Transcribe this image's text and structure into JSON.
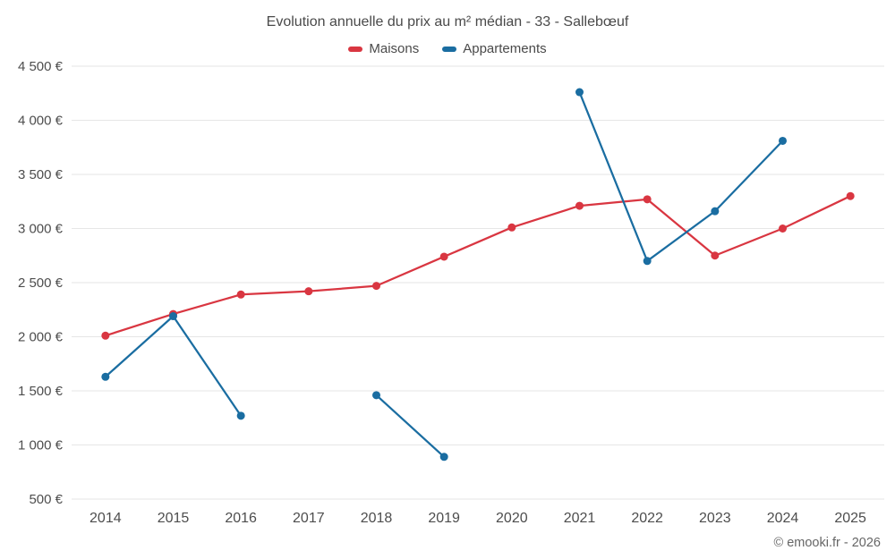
{
  "chart_data": {
    "type": "line",
    "title": "Evolution annuelle du prix au m² médian - 33 - Sallebœuf",
    "categories": [
      "2014",
      "2015",
      "2016",
      "2017",
      "2018",
      "2019",
      "2020",
      "2021",
      "2022",
      "2023",
      "2024",
      "2025"
    ],
    "series": [
      {
        "name": "Maisons",
        "color": "#d93641",
        "values": [
          2010,
          2210,
          2390,
          2420,
          2470,
          2740,
          3010,
          3210,
          3270,
          2750,
          3000,
          3300
        ]
      },
      {
        "name": "Appartements",
        "color": "#1a6da1",
        "values": [
          1630,
          2190,
          1270,
          null,
          1460,
          890,
          null,
          4260,
          2700,
          3160,
          3810,
          null
        ]
      }
    ],
    "ylim": [
      500,
      4500
    ],
    "ytick_step": 500,
    "y_suffix": " €",
    "grid": "horizontal",
    "legend_position": "top"
  },
  "footer": {
    "copyright": "© emooki.fr - 2026"
  },
  "colors": {
    "grid": "#e6e6e6",
    "text": "#4d4d4d",
    "muted": "#666666"
  }
}
